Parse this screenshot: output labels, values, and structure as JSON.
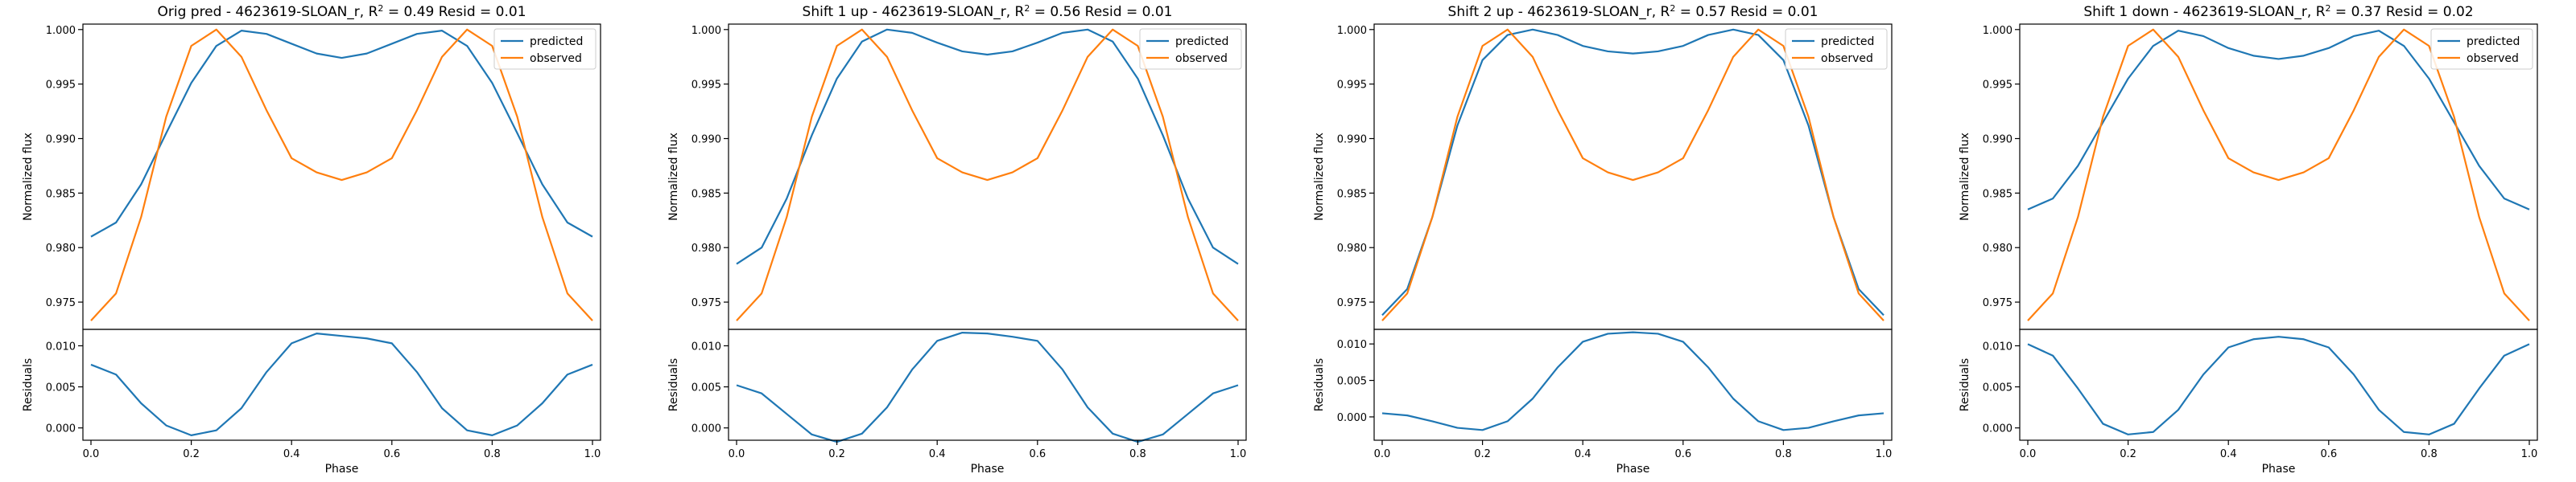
{
  "chart_data": [
    {
      "type": "line",
      "title": "Orig pred - 4623619-SLOAN_r, R² = 0.49 Resid = 0.01",
      "top": {
        "ylabel": "Normalized flux",
        "ylim": [
          0.9725,
          1.0005
        ],
        "yticks": [
          0.975,
          0.98,
          0.985,
          0.99,
          0.995,
          1.0
        ],
        "ytick_labels": [
          "0.975",
          "0.980",
          "0.985",
          "0.990",
          "0.995",
          "1.000"
        ],
        "legend": "upper right",
        "series": [
          {
            "name": "predicted",
            "color": "#1f77b4",
            "x": [
              0,
              0.05,
              0.1,
              0.15,
              0.2,
              0.25,
              0.3,
              0.35,
              0.4,
              0.45,
              0.5,
              0.55,
              0.6,
              0.65,
              0.7,
              0.75,
              0.8,
              0.85,
              0.9,
              0.95,
              1
            ],
            "y": [
              0.981,
              0.9823,
              0.9858,
              0.9905,
              0.9951,
              0.9985,
              0.9999,
              0.9996,
              0.9987,
              0.9978,
              0.9974,
              0.9978,
              0.9987,
              0.9996,
              0.9999,
              0.9985,
              0.9951,
              0.9905,
              0.9858,
              0.9823,
              0.981
            ]
          },
          {
            "name": "observed",
            "color": "#ff7f0e",
            "x": [
              0,
              0.05,
              0.1,
              0.15,
              0.2,
              0.25,
              0.3,
              0.35,
              0.4,
              0.45,
              0.5,
              0.55,
              0.6,
              0.65,
              0.7,
              0.75,
              0.8,
              0.85,
              0.9,
              0.95,
              1
            ],
            "y": [
              0.9733,
              0.9758,
              0.9828,
              0.992,
              0.9985,
              1.0,
              0.9975,
              0.9926,
              0.9882,
              0.9869,
              0.9862,
              0.9869,
              0.9882,
              0.9926,
              0.9975,
              1.0,
              0.9985,
              0.992,
              0.9828,
              0.9758,
              0.9733
            ]
          }
        ]
      },
      "bottom": {
        "ylabel": "Residuals",
        "xlabel": "Phase",
        "ylim": [
          -0.0015,
          0.012
        ],
        "yticks": [
          0.0,
          0.005,
          0.01
        ],
        "ytick_labels": [
          "0.000",
          "0.005",
          "0.010"
        ],
        "xticks": [
          0,
          0.2,
          0.4,
          0.6,
          0.8,
          1.0
        ],
        "xtick_labels": [
          "0.0",
          "0.2",
          "0.4",
          "0.6",
          "0.8",
          "1.0"
        ],
        "series": [
          {
            "name": "",
            "color": "#1f77b4",
            "x": [
              0,
              0.05,
              0.1,
              0.15,
              0.2,
              0.25,
              0.3,
              0.35,
              0.4,
              0.45,
              0.5,
              0.55,
              0.6,
              0.65,
              0.7,
              0.75,
              0.8,
              0.85,
              0.9,
              0.95,
              1
            ],
            "y": [
              0.0077,
              0.0065,
              0.003,
              0.0003,
              -0.0009,
              -0.0003,
              0.0024,
              0.0068,
              0.0103,
              0.0115,
              0.0112,
              0.0109,
              0.0103,
              0.0068,
              0.0024,
              -0.0003,
              -0.0009,
              0.0003,
              0.003,
              0.0065,
              0.0077
            ]
          }
        ]
      }
    },
    {
      "type": "line",
      "title": "Shift 1 up - 4623619-SLOAN_r, R² = 0.56 Resid = 0.01",
      "top": {
        "ylabel": "Normalized flux",
        "ylim": [
          0.9725,
          1.0005
        ],
        "yticks": [
          0.975,
          0.98,
          0.985,
          0.99,
          0.995,
          1.0
        ],
        "ytick_labels": [
          "0.975",
          "0.980",
          "0.985",
          "0.990",
          "0.995",
          "1.000"
        ],
        "legend": "upper right",
        "series": [
          {
            "name": "predicted",
            "color": "#1f77b4",
            "x": [
              0,
              0.05,
              0.1,
              0.15,
              0.2,
              0.25,
              0.3,
              0.35,
              0.4,
              0.45,
              0.5,
              0.55,
              0.6,
              0.65,
              0.7,
              0.75,
              0.8,
              0.85,
              0.9,
              0.95,
              1
            ],
            "y": [
              0.9785,
              0.98,
              0.9845,
              0.9903,
              0.9955,
              0.9989,
              1.0,
              0.9997,
              0.9988,
              0.998,
              0.9977,
              0.998,
              0.9988,
              0.9997,
              1.0,
              0.9989,
              0.9955,
              0.9903,
              0.9845,
              0.98,
              0.9785
            ]
          },
          {
            "name": "observed",
            "color": "#ff7f0e",
            "x": [
              0,
              0.05,
              0.1,
              0.15,
              0.2,
              0.25,
              0.3,
              0.35,
              0.4,
              0.45,
              0.5,
              0.55,
              0.6,
              0.65,
              0.7,
              0.75,
              0.8,
              0.85,
              0.9,
              0.95,
              1
            ],
            "y": [
              0.9733,
              0.9758,
              0.9828,
              0.992,
              0.9985,
              1.0,
              0.9975,
              0.9926,
              0.9882,
              0.9869,
              0.9862,
              0.9869,
              0.9882,
              0.9926,
              0.9975,
              1.0,
              0.9985,
              0.992,
              0.9828,
              0.9758,
              0.9733
            ]
          }
        ]
      },
      "bottom": {
        "ylabel": "Residuals",
        "xlabel": "Phase",
        "ylim": [
          -0.0015,
          0.012
        ],
        "yticks": [
          0.0,
          0.005,
          0.01
        ],
        "ytick_labels": [
          "0.000",
          "0.005",
          "0.010"
        ],
        "xticks": [
          0,
          0.2,
          0.4,
          0.6,
          0.8,
          1.0
        ],
        "xtick_labels": [
          "0.0",
          "0.2",
          "0.4",
          "0.6",
          "0.8",
          "1.0"
        ],
        "series": [
          {
            "name": "",
            "color": "#1f77b4",
            "x": [
              0,
              0.05,
              0.1,
              0.15,
              0.2,
              0.25,
              0.3,
              0.35,
              0.4,
              0.45,
              0.5,
              0.55,
              0.6,
              0.65,
              0.7,
              0.75,
              0.8,
              0.85,
              0.9,
              0.95,
              1
            ],
            "y": [
              0.0052,
              0.0042,
              0.0017,
              -0.0008,
              -0.0017,
              -0.0007,
              0.0025,
              0.0071,
              0.0106,
              0.0116,
              0.0115,
              0.0111,
              0.0106,
              0.0071,
              0.0025,
              -0.0007,
              -0.0017,
              -0.0008,
              0.0017,
              0.0042,
              0.0052
            ]
          }
        ]
      }
    },
    {
      "type": "line",
      "title": "Shift 2 up - 4623619-SLOAN_r, R² = 0.57 Resid = 0.01",
      "top": {
        "ylabel": "Normalized flux",
        "ylim": [
          0.9725,
          1.0005
        ],
        "yticks": [
          0.975,
          0.98,
          0.985,
          0.99,
          0.995,
          1.0
        ],
        "ytick_labels": [
          "0.975",
          "0.980",
          "0.985",
          "0.990",
          "0.995",
          "1.000"
        ],
        "legend": "upper right",
        "series": [
          {
            "name": "predicted",
            "color": "#1f77b4",
            "x": [
              0,
              0.05,
              0.1,
              0.15,
              0.2,
              0.25,
              0.3,
              0.35,
              0.4,
              0.45,
              0.5,
              0.55,
              0.6,
              0.65,
              0.7,
              0.75,
              0.8,
              0.85,
              0.9,
              0.95,
              1
            ],
            "y": [
              0.9738,
              0.9762,
              0.9828,
              0.9912,
              0.9972,
              0.9995,
              1.0,
              0.9995,
              0.9985,
              0.998,
              0.9978,
              0.998,
              0.9985,
              0.9995,
              1.0,
              0.9995,
              0.9972,
              0.9912,
              0.9828,
              0.9762,
              0.9738
            ]
          },
          {
            "name": "observed",
            "color": "#ff7f0e",
            "x": [
              0,
              0.05,
              0.1,
              0.15,
              0.2,
              0.25,
              0.3,
              0.35,
              0.4,
              0.45,
              0.5,
              0.55,
              0.6,
              0.65,
              0.7,
              0.75,
              0.8,
              0.85,
              0.9,
              0.95,
              1
            ],
            "y": [
              0.9733,
              0.9758,
              0.9828,
              0.992,
              0.9985,
              1.0,
              0.9975,
              0.9926,
              0.9882,
              0.9869,
              0.9862,
              0.9869,
              0.9882,
              0.9926,
              0.9975,
              1.0,
              0.9985,
              0.992,
              0.9828,
              0.9758,
              0.9733
            ]
          }
        ]
      },
      "bottom": {
        "ylabel": "Residuals",
        "xlabel": "Phase",
        "ylim": [
          -0.0032,
          0.012
        ],
        "yticks": [
          0.0,
          0.005,
          0.01
        ],
        "ytick_labels": [
          "0.000",
          "0.005",
          "0.010"
        ],
        "xticks": [
          0,
          0.2,
          0.4,
          0.6,
          0.8,
          1.0
        ],
        "xtick_labels": [
          "0.0",
          "0.2",
          "0.4",
          "0.6",
          "0.8",
          "1.0"
        ],
        "series": [
          {
            "name": "",
            "color": "#1f77b4",
            "x": [
              0,
              0.05,
              0.1,
              0.15,
              0.2,
              0.25,
              0.3,
              0.35,
              0.4,
              0.45,
              0.5,
              0.55,
              0.6,
              0.65,
              0.7,
              0.75,
              0.8,
              0.85,
              0.9,
              0.95,
              1
            ],
            "y": [
              0.0005,
              0.0002,
              -0.0006,
              -0.0015,
              -0.0018,
              -0.0006,
              0.0025,
              0.0068,
              0.0103,
              0.0114,
              0.0116,
              0.0114,
              0.0103,
              0.0068,
              0.0025,
              -0.0006,
              -0.0018,
              -0.0015,
              -0.0006,
              0.0002,
              0.0005
            ]
          }
        ]
      }
    },
    {
      "type": "line",
      "title": "Shift 1 down - 4623619-SLOAN_r, R² = 0.37 Resid = 0.02",
      "top": {
        "ylabel": "Normalized flux",
        "ylim": [
          0.9725,
          1.0005
        ],
        "yticks": [
          0.975,
          0.98,
          0.985,
          0.99,
          0.995,
          1.0
        ],
        "ytick_labels": [
          "0.975",
          "0.980",
          "0.985",
          "0.990",
          "0.995",
          "1.000"
        ],
        "legend": "upper right",
        "series": [
          {
            "name": "predicted",
            "color": "#1f77b4",
            "x": [
              0,
              0.05,
              0.1,
              0.15,
              0.2,
              0.25,
              0.3,
              0.35,
              0.4,
              0.45,
              0.5,
              0.55,
              0.6,
              0.65,
              0.7,
              0.75,
              0.8,
              0.85,
              0.9,
              0.95,
              1
            ],
            "y": [
              0.9835,
              0.9845,
              0.9875,
              0.9915,
              0.9955,
              0.9985,
              0.9999,
              0.9994,
              0.9983,
              0.9976,
              0.9973,
              0.9976,
              0.9983,
              0.9994,
              0.9999,
              0.9985,
              0.9955,
              0.9915,
              0.9875,
              0.9845,
              0.9835
            ]
          },
          {
            "name": "observed",
            "color": "#ff7f0e",
            "x": [
              0,
              0.05,
              0.1,
              0.15,
              0.2,
              0.25,
              0.3,
              0.35,
              0.4,
              0.45,
              0.5,
              0.55,
              0.6,
              0.65,
              0.7,
              0.75,
              0.8,
              0.85,
              0.9,
              0.95,
              1
            ],
            "y": [
              0.9733,
              0.9758,
              0.9828,
              0.992,
              0.9985,
              1.0,
              0.9975,
              0.9926,
              0.9882,
              0.9869,
              0.9862,
              0.9869,
              0.9882,
              0.9926,
              0.9975,
              1.0,
              0.9985,
              0.992,
              0.9828,
              0.9758,
              0.9733
            ]
          }
        ]
      },
      "bottom": {
        "ylabel": "Residuals",
        "xlabel": "Phase",
        "ylim": [
          -0.0015,
          0.012
        ],
        "yticks": [
          0.0,
          0.005,
          0.01
        ],
        "ytick_labels": [
          "0.000",
          "0.005",
          "0.010"
        ],
        "xticks": [
          0,
          0.2,
          0.4,
          0.6,
          0.8,
          1.0
        ],
        "xtick_labels": [
          "0.0",
          "0.2",
          "0.4",
          "0.6",
          "0.8",
          "1.0"
        ],
        "series": [
          {
            "name": "",
            "color": "#1f77b4",
            "x": [
              0,
              0.05,
              0.1,
              0.15,
              0.2,
              0.25,
              0.3,
              0.35,
              0.4,
              0.45,
              0.5,
              0.55,
              0.6,
              0.65,
              0.7,
              0.75,
              0.8,
              0.85,
              0.9,
              0.95,
              1
            ],
            "y": [
              0.0102,
              0.0088,
              0.0048,
              0.0005,
              -0.0008,
              -0.0005,
              0.0022,
              0.0065,
              0.0098,
              0.0108,
              0.0111,
              0.0108,
              0.0098,
              0.0065,
              0.0022,
              -0.0005,
              -0.0008,
              0.0005,
              0.0048,
              0.0088,
              0.0102
            ]
          }
        ]
      }
    }
  ]
}
